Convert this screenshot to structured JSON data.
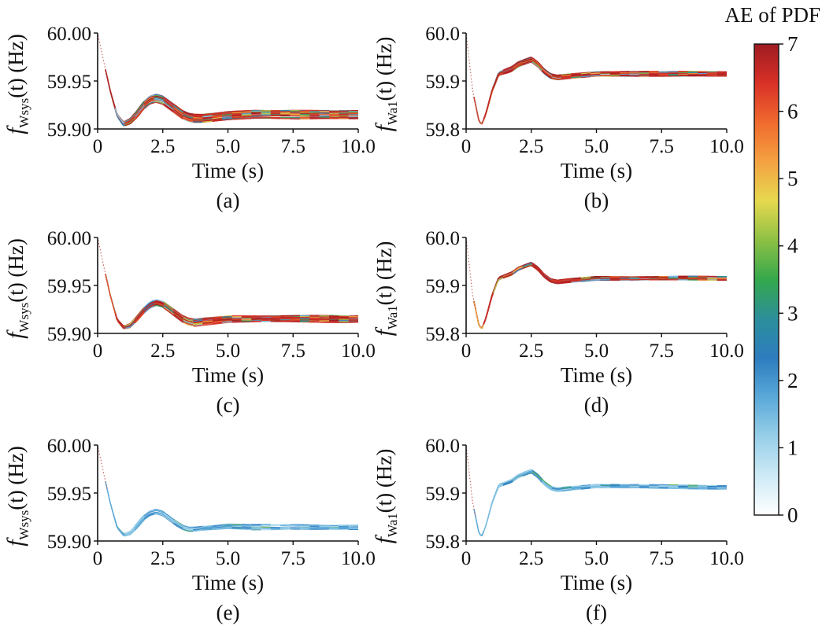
{
  "colorbar": {
    "title": "AE of PDF",
    "ticks": [
      "0",
      "1",
      "2",
      "3",
      "4",
      "5",
      "6",
      "7"
    ],
    "range": [
      0,
      7
    ],
    "colors": [
      "#ffffff",
      "#cdeaf6",
      "#97cfe8",
      "#5aa9d9",
      "#2d7cbf",
      "#2c8f9b",
      "#34a84c",
      "#8dc044",
      "#e6d94e",
      "#f4a242",
      "#f06a2e",
      "#d83127",
      "#9e1b22"
    ]
  },
  "chart_data": [
    {
      "panel": "(a)",
      "type": "line",
      "xlabel": "Time (s)",
      "ylabel_main": "f",
      "ylabel_sub": "Wsys",
      "ylabel_tail": "(t) (Hz)",
      "xlim": [
        0,
        10
      ],
      "ylim": [
        59.9,
        60.0
      ],
      "xticks": [
        "0",
        "2.5",
        "5.0",
        "7.5",
        "10.0"
      ],
      "yticks": [
        "59.90",
        "59.95",
        "60.00"
      ],
      "series_family": "f_Wsys",
      "time_s": [
        0,
        0.25,
        0.5,
        0.75,
        1.0,
        1.25,
        1.5,
        1.75,
        2.0,
        2.25,
        2.5,
        2.75,
        3.0,
        3.25,
        3.5,
        3.75,
        4.0,
        5.0,
        6.0,
        7.5,
        10.0
      ],
      "center_Hz": [
        60.0,
        59.968,
        59.938,
        59.914,
        59.905,
        59.908,
        59.915,
        59.924,
        59.93,
        59.932,
        59.93,
        59.925,
        59.92,
        59.915,
        59.912,
        59.911,
        59.911,
        59.914,
        59.915,
        59.915,
        59.915
      ],
      "spread_Hz": 0.004,
      "n_traces": 30,
      "ae_level": "high"
    },
    {
      "panel": "(b)",
      "type": "line",
      "xlabel": "Time (s)",
      "ylabel_main": "f",
      "ylabel_sub": "Wa1",
      "ylabel_tail": "(t) (Hz)",
      "xlim": [
        0,
        10
      ],
      "ylim": [
        59.8,
        60.0
      ],
      "xticks": [
        "0",
        "2.5",
        "5.0",
        "7.5",
        "10.0"
      ],
      "yticks": [
        "59.8",
        "59.9",
        "60.0"
      ],
      "series_family": "f_Wa1",
      "time_s": [
        0,
        0.25,
        0.5,
        0.6,
        0.75,
        1.0,
        1.25,
        1.5,
        1.75,
        2.0,
        2.25,
        2.5,
        2.75,
        3.0,
        3.25,
        3.5,
        4.0,
        5.0,
        6.0,
        7.5,
        10.0
      ],
      "center_Hz": [
        60.0,
        59.88,
        59.815,
        59.81,
        59.83,
        59.88,
        59.915,
        59.92,
        59.925,
        59.935,
        59.94,
        59.945,
        59.935,
        59.92,
        59.91,
        59.907,
        59.91,
        59.915,
        59.915,
        59.915,
        59.915
      ],
      "spread_Hz": 0.005,
      "n_traces": 30,
      "ae_level": "high"
    },
    {
      "panel": "(c)",
      "type": "line",
      "xlabel": "Time (s)",
      "ylabel_main": "f",
      "ylabel_sub": "Wsys",
      "ylabel_tail": "(t) (Hz)",
      "xlim": [
        0,
        10
      ],
      "ylim": [
        59.9,
        60.0
      ],
      "xticks": [
        "0",
        "2.5",
        "5.0",
        "7.5",
        "10.0"
      ],
      "yticks": [
        "59.90",
        "59.95",
        "60.00"
      ],
      "series_family": "f_Wsys",
      "time_s": [
        0,
        0.25,
        0.5,
        0.75,
        1.0,
        1.25,
        1.5,
        1.75,
        2.0,
        2.25,
        2.5,
        2.75,
        3.0,
        3.25,
        3.5,
        3.75,
        4.0,
        5.0,
        6.0,
        7.5,
        10.0
      ],
      "center_Hz": [
        60.0,
        59.968,
        59.938,
        59.914,
        59.906,
        59.908,
        59.915,
        59.923,
        59.929,
        59.932,
        59.93,
        59.925,
        59.92,
        59.915,
        59.912,
        59.911,
        59.912,
        59.915,
        59.915,
        59.915,
        59.915
      ],
      "spread_Hz": 0.0035,
      "n_traces": 30,
      "ae_level": "high"
    },
    {
      "panel": "(d)",
      "type": "line",
      "xlabel": "Time (s)",
      "ylabel_main": "f",
      "ylabel_sub": "Wa1",
      "ylabel_tail": "(t) (Hz)",
      "xlim": [
        0,
        10
      ],
      "ylim": [
        59.8,
        60.0
      ],
      "xticks": [
        "0",
        "2.5",
        "5.0",
        "7.5",
        "10.0"
      ],
      "yticks": [
        "59.8",
        "59.9",
        "60.0"
      ],
      "series_family": "f_Wa1",
      "time_s": [
        0,
        0.25,
        0.5,
        0.6,
        0.75,
        1.0,
        1.25,
        1.5,
        1.75,
        2.0,
        2.25,
        2.5,
        2.75,
        3.0,
        3.25,
        3.5,
        4.0,
        5.0,
        6.0,
        7.5,
        10.0
      ],
      "center_Hz": [
        60.0,
        59.88,
        59.815,
        59.81,
        59.83,
        59.88,
        59.915,
        59.92,
        59.925,
        59.935,
        59.94,
        59.945,
        59.935,
        59.92,
        59.91,
        59.907,
        59.91,
        59.915,
        59.915,
        59.915,
        59.915
      ],
      "spread_Hz": 0.004,
      "n_traces": 30,
      "ae_level": "high"
    },
    {
      "panel": "(e)",
      "type": "line",
      "xlabel": "Time (s)",
      "ylabel_main": "f",
      "ylabel_sub": "Wsys",
      "ylabel_tail": "(t) (Hz)",
      "xlim": [
        0,
        10
      ],
      "ylim": [
        59.9,
        60.0
      ],
      "xticks": [
        "0",
        "2.5",
        "5.0",
        "7.5",
        "10.0"
      ],
      "yticks": [
        "59.90",
        "59.95",
        "60.00"
      ],
      "series_family": "f_Wsys",
      "time_s": [
        0,
        0.25,
        0.5,
        0.75,
        1.0,
        1.25,
        1.5,
        1.75,
        2.0,
        2.25,
        2.5,
        2.75,
        3.0,
        3.25,
        3.5,
        3.75,
        4.0,
        5.0,
        6.0,
        7.5,
        10.0
      ],
      "center_Hz": [
        60.0,
        59.968,
        59.938,
        59.914,
        59.906,
        59.908,
        59.915,
        59.923,
        59.928,
        59.93,
        59.928,
        59.923,
        59.918,
        59.914,
        59.912,
        59.912,
        59.913,
        59.915,
        59.914,
        59.914,
        59.914
      ],
      "spread_Hz": 0.003,
      "n_traces": 14,
      "ae_level": "low"
    },
    {
      "panel": "(f)",
      "type": "line",
      "xlabel": "Time (s)",
      "ylabel_main": "f",
      "ylabel_sub": "Wa1",
      "ylabel_tail": "(t) (Hz)",
      "xlim": [
        0,
        10
      ],
      "ylim": [
        59.8,
        60.0
      ],
      "xticks": [
        "0",
        "2.5",
        "5.0",
        "7.5",
        "10.0"
      ],
      "yticks": [
        "59.8",
        "59.9",
        "60.0"
      ],
      "series_family": "f_Wa1",
      "time_s": [
        0,
        0.25,
        0.5,
        0.6,
        0.75,
        1.0,
        1.25,
        1.5,
        1.75,
        2.0,
        2.25,
        2.5,
        2.75,
        3.0,
        3.25,
        3.5,
        4.0,
        5.0,
        6.0,
        7.5,
        10.0
      ],
      "center_Hz": [
        60.0,
        59.88,
        59.815,
        59.81,
        59.83,
        59.88,
        59.915,
        59.92,
        59.925,
        59.935,
        59.94,
        59.945,
        59.935,
        59.92,
        59.91,
        59.907,
        59.91,
        59.915,
        59.914,
        59.913,
        59.912
      ],
      "spread_Hz": 0.004,
      "n_traces": 12,
      "ae_level": "low"
    }
  ]
}
